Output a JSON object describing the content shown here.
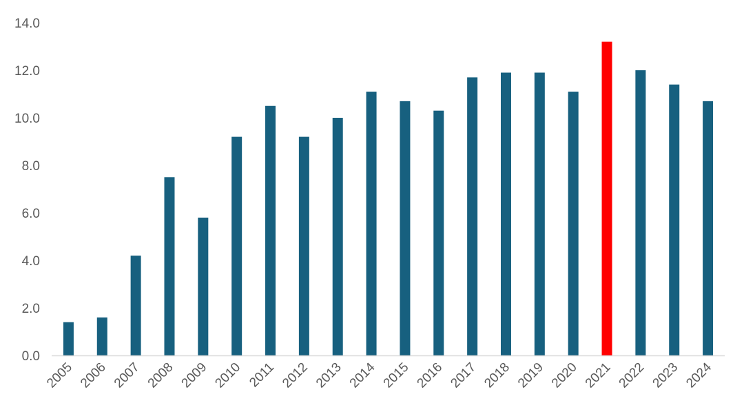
{
  "chart_data": {
    "type": "bar",
    "title": "",
    "xlabel": "",
    "ylabel": "",
    "ylim": [
      0,
      14
    ],
    "y_ticks": [
      "0.0",
      "2.0",
      "4.0",
      "6.0",
      "8.0",
      "10.0",
      "12.0",
      "14.0"
    ],
    "grid": false,
    "categories": [
      "2005",
      "2006",
      "2007",
      "2008",
      "2009",
      "2010",
      "2011",
      "2012",
      "2013",
      "2014",
      "2015",
      "2016",
      "2017",
      "2018",
      "2019",
      "2020",
      "2021",
      "2022",
      "2023",
      "2024"
    ],
    "values": [
      1.4,
      1.6,
      4.2,
      7.5,
      5.8,
      9.2,
      10.5,
      9.2,
      10.0,
      11.1,
      10.7,
      10.3,
      11.7,
      11.9,
      11.9,
      11.1,
      13.2,
      12.0,
      11.4,
      10.7
    ],
    "highlight_category": "2021",
    "colors": {
      "bar": "#17607f",
      "highlight": "#ff0000",
      "axis": "#d9d9d9",
      "text": "#595959"
    }
  }
}
